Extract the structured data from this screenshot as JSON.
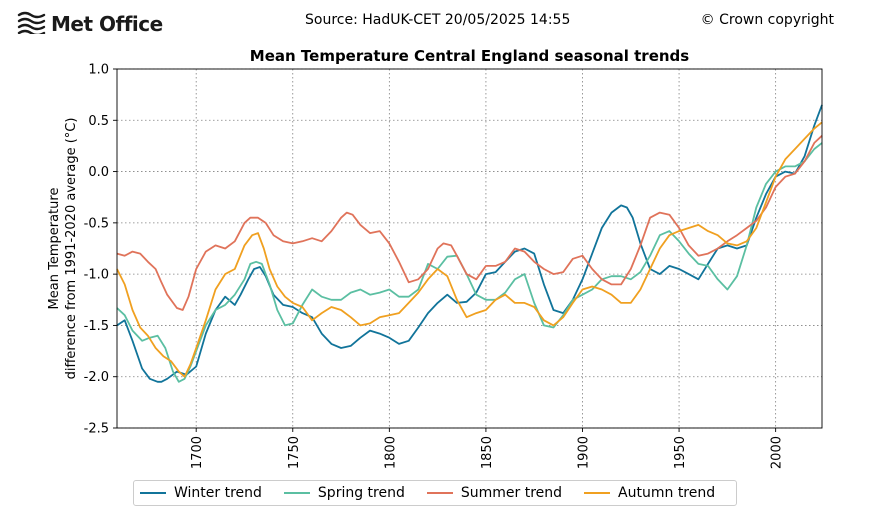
{
  "header": {
    "logo_text": "Met Office",
    "source": "Source: HadUK-CET 20/05/2025 14:55",
    "copyright": "© Crown copyright"
  },
  "colors": {
    "winter": "#11749a",
    "spring": "#5bbfa2",
    "summer": "#e0735a",
    "autumn": "#f0a020",
    "grid": "#808080"
  },
  "icons": {
    "logo": "met-office-logo-icon"
  },
  "chart_data": {
    "type": "line",
    "title": "Mean Temperature Central England seasonal trends",
    "ylabel_lines": [
      "Mean Temperature",
      "difference from 1991-2020 average (°C)"
    ],
    "xlabel": "",
    "xlim": [
      1659,
      2024
    ],
    "ylim": [
      -2.5,
      1.0
    ],
    "xticks": [
      1700,
      1750,
      1800,
      1850,
      1900,
      1950,
      2000
    ],
    "yticks": [
      -2.5,
      -2.0,
      -1.5,
      -1.0,
      -0.5,
      0.0,
      0.5,
      1.0
    ],
    "ytick_labels": [
      "-2.5",
      "-2.0",
      "-1.5",
      "-1.0",
      "-0.5",
      "0.0",
      "0.5",
      "1.0"
    ],
    "grid": true,
    "legend_position": "bottom",
    "series": [
      {
        "name": "Winter trend",
        "color_key": "winter",
        "x": [
          1659,
          1663,
          1667,
          1672,
          1676,
          1680,
          1682,
          1685,
          1690,
          1695,
          1700,
          1705,
          1710,
          1715,
          1720,
          1723,
          1727,
          1730,
          1733,
          1736,
          1740,
          1745,
          1750,
          1755,
          1760,
          1765,
          1770,
          1775,
          1780,
          1785,
          1790,
          1795,
          1800,
          1805,
          1810,
          1815,
          1820,
          1825,
          1830,
          1835,
          1840,
          1845,
          1850,
          1855,
          1860,
          1865,
          1870,
          1875,
          1880,
          1885,
          1890,
          1895,
          1900,
          1905,
          1910,
          1915,
          1920,
          1923,
          1926,
          1930,
          1935,
          1940,
          1945,
          1950,
          1955,
          1960,
          1965,
          1970,
          1975,
          1980,
          1985,
          1990,
          1995,
          2000,
          2005,
          2010,
          2015,
          2020,
          2024
        ],
        "y": [
          -1.5,
          -1.45,
          -1.65,
          -1.92,
          -2.02,
          -2.05,
          -2.05,
          -2.02,
          -1.95,
          -1.98,
          -1.9,
          -1.58,
          -1.35,
          -1.22,
          -1.3,
          -1.2,
          -1.05,
          -0.95,
          -0.93,
          -1.02,
          -1.2,
          -1.3,
          -1.32,
          -1.38,
          -1.42,
          -1.58,
          -1.68,
          -1.72,
          -1.7,
          -1.62,
          -1.55,
          -1.58,
          -1.62,
          -1.68,
          -1.65,
          -1.52,
          -1.38,
          -1.28,
          -1.2,
          -1.28,
          -1.27,
          -1.18,
          -1.0,
          -0.98,
          -0.88,
          -0.78,
          -0.75,
          -0.8,
          -1.1,
          -1.35,
          -1.38,
          -1.25,
          -1.05,
          -0.8,
          -0.55,
          -0.4,
          -0.33,
          -0.35,
          -0.45,
          -0.7,
          -0.95,
          -1.0,
          -0.92,
          -0.95,
          -1.0,
          -1.05,
          -0.9,
          -0.75,
          -0.72,
          -0.75,
          -0.72,
          -0.45,
          -0.22,
          -0.05,
          0.0,
          -0.02,
          0.15,
          0.45,
          0.65
        ]
      },
      {
        "name": "Spring trend",
        "color_key": "spring",
        "x": [
          1659,
          1663,
          1667,
          1672,
          1676,
          1680,
          1684,
          1688,
          1691,
          1694,
          1697,
          1700,
          1705,
          1710,
          1715,
          1720,
          1725,
          1728,
          1731,
          1734,
          1738,
          1742,
          1746,
          1750,
          1755,
          1760,
          1765,
          1770,
          1775,
          1780,
          1785,
          1790,
          1795,
          1800,
          1805,
          1810,
          1815,
          1820,
          1825,
          1830,
          1835,
          1840,
          1845,
          1850,
          1855,
          1860,
          1865,
          1870,
          1875,
          1880,
          1885,
          1890,
          1895,
          1900,
          1905,
          1910,
          1915,
          1920,
          1925,
          1930,
          1935,
          1940,
          1945,
          1950,
          1955,
          1960,
          1965,
          1970,
          1975,
          1980,
          1985,
          1990,
          1995,
          2000,
          2005,
          2010,
          2015,
          2020,
          2024
        ],
        "y": [
          -1.33,
          -1.4,
          -1.55,
          -1.65,
          -1.62,
          -1.6,
          -1.72,
          -1.95,
          -2.05,
          -2.02,
          -1.9,
          -1.75,
          -1.5,
          -1.35,
          -1.3,
          -1.2,
          -1.05,
          -0.9,
          -0.88,
          -0.9,
          -1.1,
          -1.35,
          -1.5,
          -1.48,
          -1.3,
          -1.15,
          -1.22,
          -1.25,
          -1.25,
          -1.18,
          -1.15,
          -1.2,
          -1.18,
          -1.15,
          -1.22,
          -1.22,
          -1.15,
          -0.9,
          -0.95,
          -0.83,
          -0.82,
          -1.0,
          -1.2,
          -1.25,
          -1.25,
          -1.18,
          -1.05,
          -1.0,
          -1.28,
          -1.5,
          -1.52,
          -1.4,
          -1.25,
          -1.2,
          -1.15,
          -1.05,
          -1.02,
          -1.02,
          -1.05,
          -0.98,
          -0.82,
          -0.62,
          -0.58,
          -0.68,
          -0.8,
          -0.9,
          -0.92,
          -1.05,
          -1.15,
          -1.02,
          -0.72,
          -0.35,
          -0.12,
          0.0,
          0.05,
          0.05,
          0.1,
          0.22,
          0.28
        ]
      },
      {
        "name": "Summer trend",
        "color_key": "summer",
        "x": [
          1659,
          1663,
          1667,
          1671,
          1675,
          1679,
          1682,
          1685,
          1690,
          1693,
          1696,
          1700,
          1705,
          1710,
          1715,
          1720,
          1725,
          1728,
          1732,
          1736,
          1740,
          1745,
          1750,
          1755,
          1760,
          1765,
          1770,
          1775,
          1778,
          1781,
          1785,
          1790,
          1795,
          1800,
          1805,
          1810,
          1815,
          1820,
          1825,
          1828,
          1832,
          1835,
          1840,
          1845,
          1850,
          1855,
          1860,
          1865,
          1870,
          1875,
          1880,
          1885,
          1890,
          1895,
          1900,
          1905,
          1910,
          1915,
          1920,
          1925,
          1930,
          1935,
          1940,
          1945,
          1950,
          1955,
          1960,
          1965,
          1970,
          1975,
          1980,
          1985,
          1990,
          1995,
          2000,
          2005,
          2010,
          2015,
          2020,
          2024
        ],
        "y": [
          -0.8,
          -0.82,
          -0.78,
          -0.8,
          -0.88,
          -0.95,
          -1.08,
          -1.2,
          -1.33,
          -1.35,
          -1.22,
          -0.95,
          -0.78,
          -0.72,
          -0.75,
          -0.68,
          -0.5,
          -0.45,
          -0.45,
          -0.5,
          -0.62,
          -0.68,
          -0.7,
          -0.68,
          -0.65,
          -0.68,
          -0.58,
          -0.45,
          -0.4,
          -0.42,
          -0.52,
          -0.6,
          -0.58,
          -0.7,
          -0.88,
          -1.08,
          -1.05,
          -0.95,
          -0.75,
          -0.7,
          -0.72,
          -0.82,
          -1.0,
          -1.05,
          -0.92,
          -0.92,
          -0.88,
          -0.75,
          -0.78,
          -0.88,
          -0.95,
          -1.0,
          -0.98,
          -0.85,
          -0.82,
          -0.95,
          -1.05,
          -1.1,
          -1.1,
          -0.95,
          -0.72,
          -0.45,
          -0.4,
          -0.42,
          -0.55,
          -0.72,
          -0.82,
          -0.8,
          -0.75,
          -0.68,
          -0.62,
          -0.55,
          -0.48,
          -0.35,
          -0.15,
          -0.05,
          -0.02,
          0.1,
          0.28,
          0.35
        ]
      },
      {
        "name": "Autumn trend",
        "color_key": "autumn",
        "x": [
          1659,
          1663,
          1667,
          1671,
          1675,
          1679,
          1683,
          1687,
          1691,
          1694,
          1697,
          1700,
          1705,
          1710,
          1715,
          1720,
          1725,
          1729,
          1732,
          1735,
          1738,
          1742,
          1746,
          1750,
          1755,
          1760,
          1765,
          1770,
          1775,
          1780,
          1785,
          1790,
          1795,
          1800,
          1805,
          1810,
          1815,
          1820,
          1825,
          1830,
          1835,
          1840,
          1845,
          1850,
          1855,
          1860,
          1865,
          1870,
          1875,
          1880,
          1885,
          1890,
          1895,
          1900,
          1905,
          1910,
          1915,
          1920,
          1925,
          1930,
          1935,
          1940,
          1945,
          1950,
          1955,
          1960,
          1965,
          1970,
          1975,
          1980,
          1985,
          1990,
          1995,
          2000,
          2005,
          2010,
          2015,
          2020,
          2024
        ],
        "y": [
          -0.95,
          -1.1,
          -1.35,
          -1.52,
          -1.6,
          -1.72,
          -1.8,
          -1.85,
          -1.95,
          -2.0,
          -1.88,
          -1.72,
          -1.45,
          -1.15,
          -1.0,
          -0.95,
          -0.72,
          -0.62,
          -0.6,
          -0.75,
          -0.95,
          -1.12,
          -1.22,
          -1.28,
          -1.32,
          -1.45,
          -1.38,
          -1.32,
          -1.35,
          -1.42,
          -1.5,
          -1.48,
          -1.42,
          -1.4,
          -1.38,
          -1.28,
          -1.18,
          -1.05,
          -0.95,
          -1.02,
          -1.25,
          -1.42,
          -1.38,
          -1.35,
          -1.25,
          -1.2,
          -1.28,
          -1.28,
          -1.32,
          -1.45,
          -1.5,
          -1.42,
          -1.28,
          -1.15,
          -1.12,
          -1.15,
          -1.2,
          -1.28,
          -1.28,
          -1.15,
          -0.95,
          -0.75,
          -0.62,
          -0.58,
          -0.55,
          -0.52,
          -0.58,
          -0.62,
          -0.7,
          -0.72,
          -0.68,
          -0.55,
          -0.3,
          -0.05,
          0.12,
          0.22,
          0.32,
          0.42,
          0.48
        ]
      }
    ]
  }
}
